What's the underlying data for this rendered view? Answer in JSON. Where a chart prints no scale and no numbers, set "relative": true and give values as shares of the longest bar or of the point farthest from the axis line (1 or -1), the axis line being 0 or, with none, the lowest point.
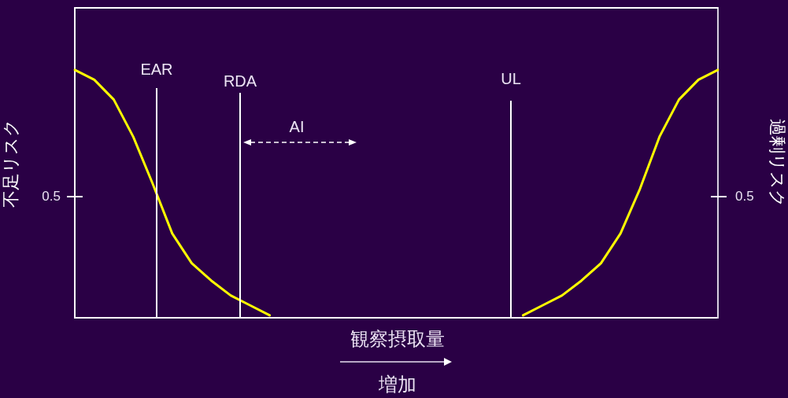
{
  "chart_data": {
    "type": "line",
    "relative": true,
    "xlabel": "観察摂取量",
    "ylabel": "不足リスク",
    "y2label": "過剰リスク",
    "categories": [
      null,
      null,
      null,
      null,
      null,
      null,
      null,
      null,
      null,
      null,
      null,
      null,
      null,
      null,
      null,
      null,
      null,
      null,
      null,
      null,
      null,
      null,
      null,
      null,
      null,
      null,
      null,
      null,
      null,
      null,
      null,
      null,
      null,
      null
    ],
    "marker": "none",
    "series": [
      {
        "color": "#ffff00",
        "values": [
          1,
          0.96,
          0.88,
          0.73,
          0.54,
          0.34,
          0.22,
          0.15,
          0.09,
          0.05,
          0.01,
          null,
          null,
          null,
          null,
          null,
          null,
          null,
          null,
          null,
          null,
          null,
          null,
          null,
          null,
          null,
          null,
          null,
          null,
          null,
          null,
          null,
          null,
          null
        ]
      },
      {
        "color": "#ffff00",
        "values": [
          null,
          null,
          null,
          null,
          null,
          null,
          null,
          null,
          null,
          null,
          null,
          null,
          null,
          null,
          null,
          null,
          null,
          null,
          null,
          null,
          null,
          null,
          null,
          0.01,
          0.05,
          0.09,
          0.15,
          0.22,
          0.34,
          0.52,
          0.73,
          0.88,
          0.96,
          1
        ]
      }
    ],
    "annotations": [
      "EAR",
      "RDA",
      "UL",
      "AI",
      "0.5",
      "0.5",
      "増加"
    ]
  }
}
